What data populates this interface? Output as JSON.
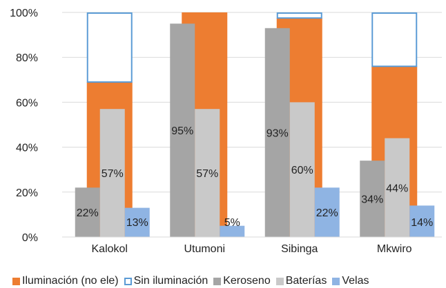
{
  "chart_data": {
    "type": "bar",
    "title": "",
    "xlabel": "",
    "ylabel": "",
    "categories": [
      "Kalokol",
      "Utumoni",
      "Sibinga",
      "Mkwiro"
    ],
    "ylim": [
      0,
      100
    ],
    "y_ticks": [
      "0%",
      "20%",
      "40%",
      "60%",
      "80%",
      "100%"
    ],
    "grid": true,
    "legend_position": "bottom",
    "stacked_series": [
      {
        "name": "Iluminación (no ele)",
        "color": "#ED7D31",
        "values": [
          69,
          100,
          97.5,
          76
        ]
      },
      {
        "name": "Sin iluminación",
        "color": "#5B9BD5",
        "values": [
          31,
          0,
          2.5,
          24
        ]
      }
    ],
    "grouped_series": [
      {
        "name": "Keroseno",
        "color": "#A5A5A5",
        "values": [
          22,
          95,
          93,
          34
        ],
        "labels": [
          "22%",
          "95%",
          "93%",
          "34%"
        ]
      },
      {
        "name": "Baterías",
        "color": "#C9C9C9",
        "values": [
          57,
          57,
          60,
          44
        ],
        "labels": [
          "57%",
          "57%",
          "60%",
          "44%"
        ]
      },
      {
        "name": "Velas",
        "color": "#8FB4E3",
        "values": [
          13,
          5,
          22,
          14
        ],
        "labels": [
          "13%",
          "5%",
          "22%",
          "14%"
        ]
      }
    ]
  }
}
